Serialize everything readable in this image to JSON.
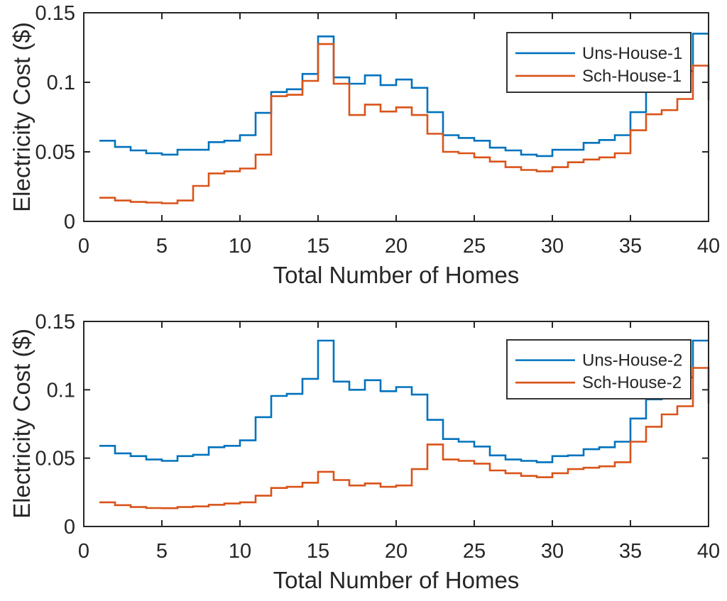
{
  "figure": {
    "background": "#ffffff",
    "axis_color": "#262626",
    "accent_blue": "#0072BD",
    "accent_orange": "#D95319"
  },
  "chart_data": [
    {
      "type": "line",
      "subtype": "stairs",
      "title": "",
      "xlabel": "Total Number of Homes",
      "ylabel": "Electricity Cost ($)",
      "xlim": [
        0,
        40
      ],
      "ylim": [
        0,
        0.15
      ],
      "xticks": [
        0,
        5,
        10,
        15,
        20,
        25,
        30,
        35,
        40
      ],
      "xtick_labels": [
        "0",
        "5",
        "10",
        "15",
        "20",
        "25",
        "30",
        "35",
        "40"
      ],
      "yticks": [
        0,
        0.05,
        0.1,
        0.15
      ],
      "ytick_labels": [
        "0",
        "0.05",
        "0.1",
        "0.15"
      ],
      "grid": false,
      "legend_position": "upper-right",
      "x": [
        1,
        2,
        3,
        4,
        5,
        6,
        7,
        8,
        9,
        10,
        11,
        12,
        13,
        14,
        15,
        16,
        17,
        18,
        19,
        20,
        21,
        22,
        23,
        24,
        25,
        26,
        27,
        28,
        29,
        30,
        31,
        32,
        33,
        34,
        35,
        36,
        37,
        38,
        39,
        40
      ],
      "series": [
        {
          "name": "Uns-House-1",
          "color": "#0072BD",
          "values": [
            0.058,
            0.0535,
            0.051,
            0.049,
            0.048,
            0.0515,
            0.0515,
            0.057,
            0.058,
            0.062,
            0.078,
            0.093,
            0.095,
            0.106,
            0.133,
            0.1035,
            0.099,
            0.105,
            0.098,
            0.102,
            0.096,
            0.0785,
            0.062,
            0.06,
            0.058,
            0.053,
            0.051,
            0.048,
            0.047,
            0.0515,
            0.0515,
            0.0565,
            0.0585,
            0.062,
            0.0785,
            0.094,
            0.1,
            0.108,
            0.135,
            0.135
          ]
        },
        {
          "name": "Sch-House-1",
          "color": "#D95319",
          "values": [
            0.017,
            0.015,
            0.014,
            0.0135,
            0.013,
            0.015,
            0.0255,
            0.0345,
            0.036,
            0.038,
            0.048,
            0.09,
            0.091,
            0.101,
            0.1275,
            0.099,
            0.0765,
            0.084,
            0.079,
            0.082,
            0.0765,
            0.063,
            0.05,
            0.049,
            0.046,
            0.043,
            0.039,
            0.037,
            0.036,
            0.039,
            0.0425,
            0.0445,
            0.046,
            0.049,
            0.0655,
            0.077,
            0.08,
            0.088,
            0.112,
            0.087
          ]
        }
      ]
    },
    {
      "type": "line",
      "subtype": "stairs",
      "title": "",
      "xlabel": "Total Number of Homes",
      "ylabel": "Electricity Cost ($)",
      "xlim": [
        0,
        40
      ],
      "ylim": [
        0,
        0.15
      ],
      "xticks": [
        0,
        5,
        10,
        15,
        20,
        25,
        30,
        35,
        40
      ],
      "xtick_labels": [
        "0",
        "5",
        "10",
        "15",
        "20",
        "25",
        "30",
        "35",
        "40"
      ],
      "yticks": [
        0,
        0.05,
        0.1,
        0.15
      ],
      "ytick_labels": [
        "0",
        "0.05",
        "0.1",
        "0.15"
      ],
      "grid": false,
      "legend_position": "upper-right",
      "x": [
        1,
        2,
        3,
        4,
        5,
        6,
        7,
        8,
        9,
        10,
        11,
        12,
        13,
        14,
        15,
        16,
        17,
        18,
        19,
        20,
        21,
        22,
        23,
        24,
        25,
        26,
        27,
        28,
        29,
        30,
        31,
        32,
        33,
        34,
        35,
        36,
        37,
        38,
        39,
        40
      ],
      "series": [
        {
          "name": "Uns-House-2",
          "color": "#0072BD",
          "values": [
            0.059,
            0.0535,
            0.0515,
            0.049,
            0.048,
            0.0515,
            0.0525,
            0.058,
            0.059,
            0.063,
            0.08,
            0.0955,
            0.097,
            0.108,
            0.136,
            0.106,
            0.1,
            0.107,
            0.099,
            0.102,
            0.0965,
            0.078,
            0.064,
            0.062,
            0.0585,
            0.052,
            0.049,
            0.048,
            0.047,
            0.0515,
            0.052,
            0.0565,
            0.058,
            0.062,
            0.079,
            0.093,
            0.1,
            0.109,
            0.136,
            0.136
          ]
        },
        {
          "name": "Sch-House-2",
          "color": "#D95319",
          "values": [
            0.0177,
            0.0156,
            0.0142,
            0.0135,
            0.0134,
            0.0142,
            0.0147,
            0.0159,
            0.0168,
            0.0177,
            0.0225,
            0.0282,
            0.029,
            0.032,
            0.04,
            0.034,
            0.03,
            0.0315,
            0.029,
            0.03,
            0.042,
            0.06,
            0.049,
            0.048,
            0.046,
            0.041,
            0.039,
            0.037,
            0.036,
            0.039,
            0.042,
            0.043,
            0.044,
            0.047,
            0.062,
            0.073,
            0.082,
            0.088,
            0.116,
            0.09
          ]
        }
      ]
    }
  ]
}
